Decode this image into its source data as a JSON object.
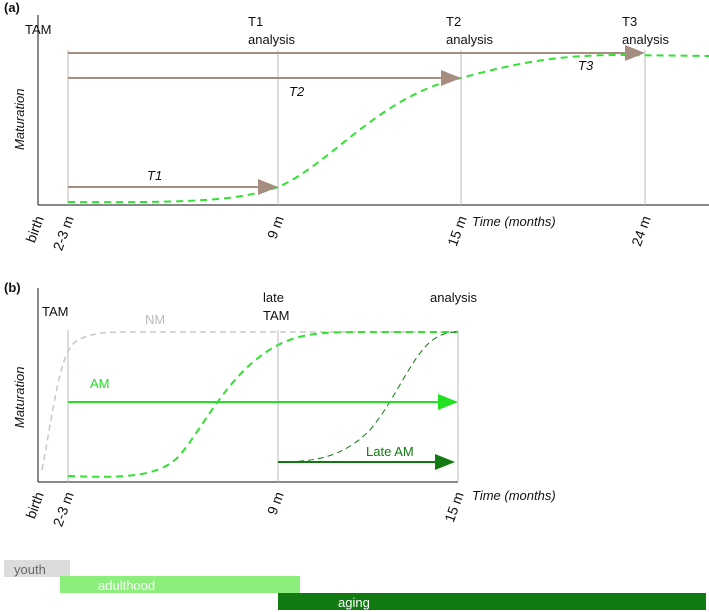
{
  "panel_a": {
    "label": "(a)",
    "y_label": "Maturation",
    "x_label": "Time (months)",
    "x_ticks": [
      "birth",
      "2-3 m",
      "9 m",
      "15 m",
      "24 m"
    ],
    "events": [
      [
        "TAM"
      ],
      [
        "T1",
        "analysis"
      ],
      [
        "T2",
        "analysis"
      ],
      [
        "T3",
        "analysis"
      ]
    ],
    "arrows": [
      "T1",
      "T2",
      "T3"
    ]
  },
  "panel_b": {
    "label": "(b)",
    "y_label": "Maturation",
    "x_label": "Time (months)",
    "x_ticks": [
      "birth",
      "2-3 m",
      "9 m",
      "15 m"
    ],
    "events": [
      [
        "TAM"
      ],
      [
        "late",
        "TAM"
      ],
      [
        "analysis"
      ]
    ],
    "curves": [
      "NM",
      "AM",
      "Late AM"
    ]
  },
  "life_stages": [
    "youth",
    "adulthood",
    "aging"
  ]
}
